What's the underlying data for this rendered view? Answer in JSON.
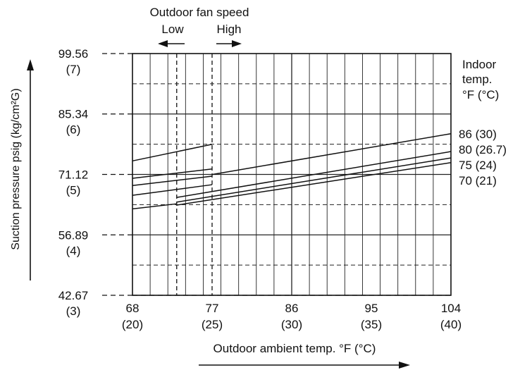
{
  "chart_data": {
    "type": "line",
    "title": "",
    "xlabel": "Outdoor ambient temp. °F (°C)",
    "ylabel": "Suction pressure psig (kg/cm²G)",
    "xlim": [
      68,
      104
    ],
    "ylim": [
      42.67,
      99.56
    ],
    "x_ticks": [
      {
        "value": 68,
        "label": "68",
        "sublabel": "(20)"
      },
      {
        "value": 77,
        "label": "77",
        "sublabel": "(25)"
      },
      {
        "value": 86,
        "label": "86",
        "sublabel": "(30)"
      },
      {
        "value": 95,
        "label": "95",
        "sublabel": "(35)"
      },
      {
        "value": 104,
        "label": "104",
        "sublabel": "(40)"
      }
    ],
    "y_ticks": [
      {
        "value": 99.56,
        "label": "99.56",
        "sublabel": "(7)"
      },
      {
        "value": 85.34,
        "label": "85.34",
        "sublabel": "(6)"
      },
      {
        "value": 71.12,
        "label": "71.12",
        "sublabel": "(5)"
      },
      {
        "value": 56.89,
        "label": "56.89",
        "sublabel": "(4)"
      },
      {
        "value": 42.67,
        "label": "42.67",
        "sublabel": "(3)"
      }
    ],
    "grid": true,
    "fan_speed": {
      "title": "Outdoor fan speed",
      "low_label": "Low",
      "high_label": "High",
      "switch_x": [
        73,
        77
      ]
    },
    "legend_title": [
      "Indoor",
      "temp.",
      "°F (°C)"
    ],
    "series": [
      {
        "name": "86 (30)",
        "low": {
          "x": [
            68,
            77
          ],
          "y": [
            74.3,
            78.2
          ]
        },
        "high": {
          "x": [
            77,
            104
          ],
          "y": [
            71.1,
            80.7
          ]
        }
      },
      {
        "name": "80 (26.7)",
        "low": {
          "x": [
            68,
            77
          ],
          "y": [
            70.2,
            72.4
          ]
        },
        "high": {
          "x": [
            73,
            104
          ],
          "y": [
            65.7,
            76.5
          ]
        }
      },
      {
        "name": "75 (24)",
        "low": {
          "x": [
            68,
            77
          ],
          "y": [
            68.5,
            70.7
          ]
        },
        "high": {
          "x": [
            73,
            104
          ],
          "y": [
            64.6,
            75.0
          ]
        }
      },
      {
        "name": "70 (21)",
        "low": {
          "x": [
            68,
            77
          ],
          "y": [
            66.2,
            68.7
          ]
        },
        "high": {
          "x": [
            73,
            104
          ],
          "y": [
            63.9,
            73.9
          ]
        }
      }
    ],
    "extra_segment": {
      "x": [
        68,
        73
      ],
      "y": [
        63.0,
        64.2
      ]
    }
  }
}
